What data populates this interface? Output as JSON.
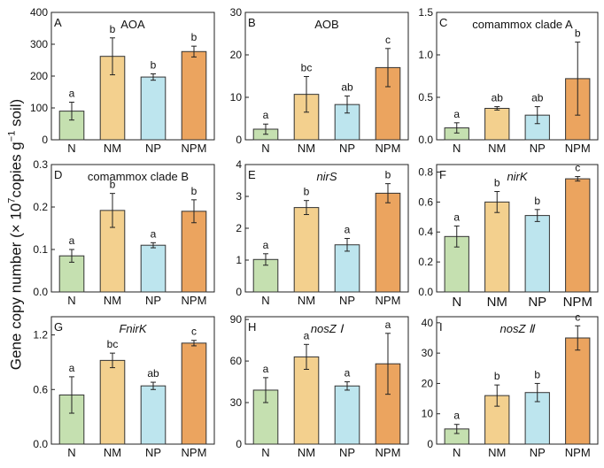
{
  "figure": {
    "ylabel_text": "Gene copy number (× 10",
    "ylabel_exp1": "7",
    "ylabel_mid": "copies g",
    "ylabel_exp2": "−1",
    "ylabel_end": " soil)"
  },
  "colors": {
    "N": "#c5e0b0",
    "NM": "#f3d08e",
    "NP": "#bde5ee",
    "NPM": "#eba45f"
  },
  "chart_data": [
    {
      "type": "bar",
      "panel": "A",
      "title": "AOA",
      "italic": false,
      "categories": [
        "N",
        "NM",
        "NP",
        "NPM"
      ],
      "values": [
        90,
        262,
        197,
        277
      ],
      "errors": [
        28,
        58,
        10,
        17
      ],
      "letters": [
        "a",
        "b",
        "b",
        "b"
      ],
      "ylim": [
        0,
        400
      ],
      "yticks": [
        "0",
        "100",
        "200",
        "300",
        "400"
      ],
      "ytick_values": [
        0,
        100,
        200,
        300,
        400
      ],
      "big_xlabels": false
    },
    {
      "type": "bar",
      "panel": "B",
      "title": "AOB",
      "italic": false,
      "categories": [
        "N",
        "NM",
        "NP",
        "NPM"
      ],
      "values": [
        2.5,
        10.7,
        8.3,
        17
      ],
      "errors": [
        1.2,
        4.2,
        2,
        4.5
      ],
      "letters": [
        "a",
        "bc",
        "ab",
        "c"
      ],
      "ylim": [
        0,
        30
      ],
      "yticks": [
        "0",
        "10",
        "20",
        "30"
      ],
      "ytick_values": [
        0,
        10,
        20,
        30
      ],
      "big_xlabels": false
    },
    {
      "type": "bar",
      "panel": "C",
      "title": "comammox clade A",
      "italic": false,
      "categories": [
        "N",
        "NM",
        "NP",
        "NPM"
      ],
      "values": [
        0.14,
        0.37,
        0.29,
        0.72
      ],
      "errors": [
        0.06,
        0.02,
        0.1,
        0.43
      ],
      "letters": [
        "a",
        "ab",
        "ab",
        "b"
      ],
      "ylim": [
        0,
        1.5
      ],
      "yticks": [
        "0.0",
        "0.5",
        "1.0",
        "1.5"
      ],
      "ytick_values": [
        0,
        0.5,
        1.0,
        1.5
      ],
      "big_xlabels": false
    },
    {
      "type": "bar",
      "panel": "D",
      "title": "comammox clade B",
      "italic": false,
      "categories": [
        "N",
        "NM",
        "NP",
        "NPM"
      ],
      "values": [
        0.085,
        0.192,
        0.11,
        0.19
      ],
      "errors": [
        0.015,
        0.04,
        0.006,
        0.027
      ],
      "letters": [
        "a",
        "b",
        "a",
        "b"
      ],
      "ylim": [
        0,
        0.3
      ],
      "yticks": [
        "0.0",
        "0.1",
        "0.2",
        "0.3"
      ],
      "ytick_values": [
        0,
        0.1,
        0.2,
        0.3
      ],
      "big_xlabels": false
    },
    {
      "type": "bar",
      "panel": "E",
      "title": "nirS",
      "italic": true,
      "categories": [
        "N",
        "NM",
        "NP",
        "NPM"
      ],
      "values": [
        1.02,
        2.65,
        1.48,
        3.1
      ],
      "errors": [
        0.18,
        0.22,
        0.2,
        0.3
      ],
      "letters": [
        "a",
        "b",
        "a",
        "b"
      ],
      "ylim": [
        0,
        4
      ],
      "yticks": [
        "0",
        "1",
        "2",
        "3",
        "4"
      ],
      "ytick_values": [
        0,
        1,
        2,
        3,
        4
      ],
      "big_xlabels": false
    },
    {
      "type": "bar",
      "panel": "F",
      "title": "nirK",
      "italic": true,
      "categories": [
        "N",
        "NM",
        "NP",
        "NPM"
      ],
      "values": [
        0.37,
        0.6,
        0.51,
        0.755
      ],
      "errors": [
        0.07,
        0.07,
        0.04,
        0.015
      ],
      "letters": [
        "a",
        "b",
        "b",
        "c"
      ],
      "ylim": [
        0,
        0.85
      ],
      "yticks": [
        "0.0",
        "0.2",
        "0.4",
        "0.6",
        "0.8"
      ],
      "ytick_values": [
        0,
        0.2,
        0.4,
        0.6,
        0.8
      ],
      "big_xlabels": true
    },
    {
      "type": "bar",
      "panel": "G",
      "title": "FnirK",
      "italic": true,
      "categories": [
        "N",
        "NM",
        "NP",
        "NPM"
      ],
      "values": [
        0.54,
        0.92,
        0.64,
        1.11
      ],
      "errors": [
        0.2,
        0.08,
        0.04,
        0.03
      ],
      "letters": [
        "a",
        "bc",
        "ab",
        "c"
      ],
      "ylim": [
        0,
        1.4
      ],
      "yticks": [
        "0.0",
        "0.6",
        "1.2"
      ],
      "ytick_values": [
        0,
        0.6,
        1.2
      ],
      "big_xlabels": false
    },
    {
      "type": "bar",
      "panel": "H",
      "title": "nosZ Ⅰ",
      "italic": true,
      "categories": [
        "N",
        "NM",
        "NP",
        "NPM"
      ],
      "values": [
        39,
        63,
        42,
        58
      ],
      "errors": [
        9,
        9,
        3,
        22
      ],
      "letters": [
        "a",
        "a",
        "a",
        "a"
      ],
      "ylim": [
        0,
        92
      ],
      "yticks": [
        "0",
        "30",
        "60",
        "90"
      ],
      "ytick_values": [
        0,
        30,
        60,
        90
      ],
      "big_xlabels": false
    },
    {
      "type": "bar",
      "panel": "I",
      "title": "nosZ Ⅱ",
      "italic": true,
      "categories": [
        "N",
        "NM",
        "NP",
        "NPM"
      ],
      "values": [
        5,
        16,
        17,
        35
      ],
      "errors": [
        1.5,
        3.5,
        3,
        4
      ],
      "letters": [
        "a",
        "b",
        "b",
        "c"
      ],
      "ylim": [
        0,
        42
      ],
      "yticks": [
        "0",
        "10",
        "20",
        "30",
        "40"
      ],
      "ytick_values": [
        0,
        10,
        20,
        30,
        40
      ],
      "big_xlabels": false
    }
  ]
}
